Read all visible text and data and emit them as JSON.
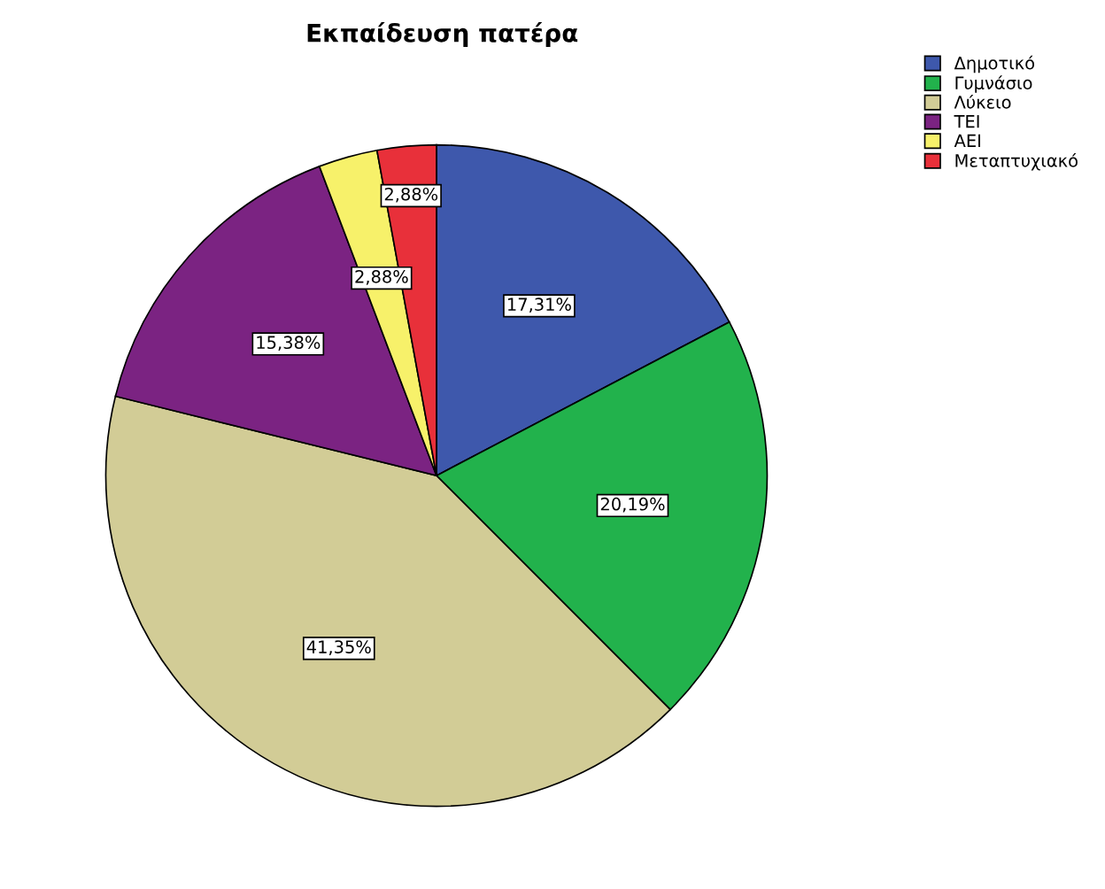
{
  "chart_data": {
    "type": "pie",
    "title": "Εκπαίδευση πατέρα",
    "categories": [
      "Δημοτικό",
      "Γυμνάσιο",
      "Λύκειο",
      "ΤΕΙ",
      "ΑΕΙ",
      "Μεταπτυχιακό"
    ],
    "values": [
      17.31,
      20.19,
      41.35,
      15.38,
      2.88,
      2.88
    ],
    "value_labels": [
      "17,31%",
      "20,19%",
      "41,35%",
      "15,38%",
      "2,88%",
      "2,88%"
    ],
    "colors": [
      "#3e58ac",
      "#22b24c",
      "#d2cc96",
      "#7b2382",
      "#f7f16a",
      "#e8303a"
    ],
    "legend": "top right"
  }
}
